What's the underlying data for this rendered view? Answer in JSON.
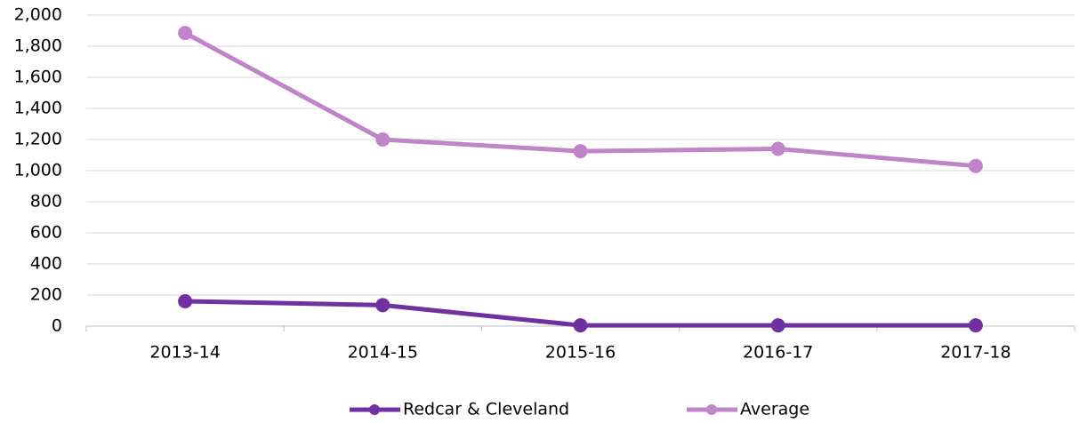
{
  "chart_data": {
    "type": "line",
    "categories": [
      "2013-14",
      "2014-15",
      "2015-16",
      "2016-17",
      "2017-18"
    ],
    "series": [
      {
        "name": "Redcar & Cleveland",
        "color": "#7030a0",
        "values": [
          160,
          135,
          5,
          5,
          5
        ]
      },
      {
        "name": "Average",
        "color": "#c084c8",
        "values": [
          1885,
          1200,
          1125,
          1140,
          1030
        ]
      }
    ],
    "ylim": [
      0,
      2000
    ],
    "yticks": [
      0,
      200,
      400,
      600,
      800,
      {
        "value": 1000,
        "label": "1,000"
      },
      {
        "value": 1200,
        "label": "1,200"
      },
      {
        "value": 1400,
        "label": "1,400"
      },
      {
        "value": 1600,
        "label": "1,600"
      },
      {
        "value": 1800,
        "label": "1,800"
      },
      {
        "value": 2000,
        "label": "2,000"
      }
    ],
    "grid": true,
    "legend": "bottom"
  }
}
